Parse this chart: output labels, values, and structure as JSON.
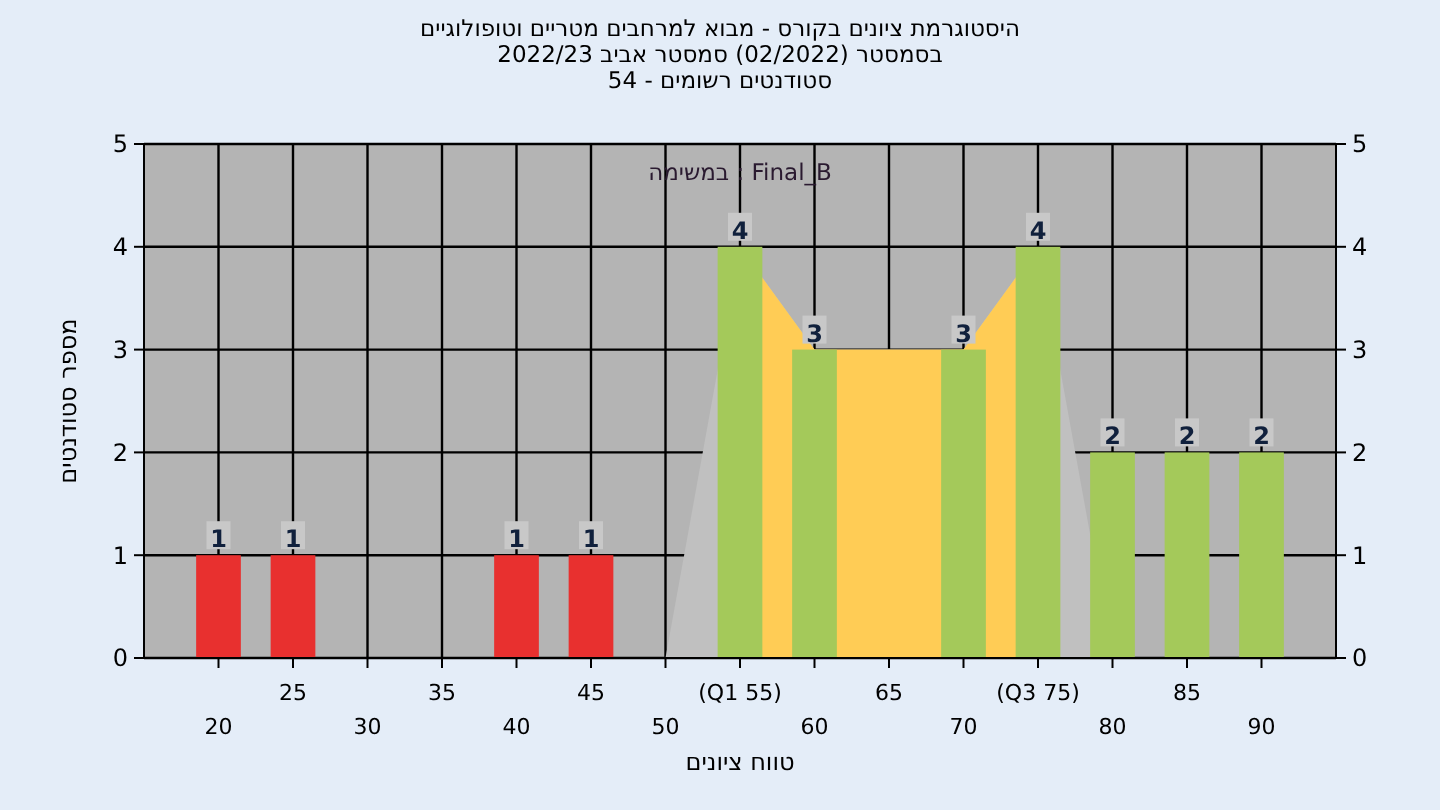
{
  "chart_data": {
    "type": "bar",
    "title": "היסטוגרמת ציונים בקורס - מבוא למרחבים מטריים וטופולוגיים",
    "subtitle": "בסמסטר  (02/2022)  סמסטר אביב 2022/23\nסטודנטים רשומים - 54",
    "xlabel": "טווח ציונים",
    "ylabel": "מספר סטודנטים",
    "annotations": [
      "במשימה : Final_B"
    ],
    "categories": [
      "20",
      "25",
      "30",
      "35",
      "40",
      "45",
      "50",
      "(Q1 55)",
      "60",
      "65",
      "70",
      "(Q3 75)",
      "80",
      "85",
      "90"
    ],
    "series": [
      {
        "type": "area",
        "color": "#c0c0c0",
        "values": [
          null,
          null,
          null,
          null,
          null,
          null,
          0,
          4,
          3,
          3,
          3,
          4,
          0,
          null,
          null
        ]
      },
      {
        "type": "area",
        "color": "#ffcc55",
        "values": [
          null,
          null,
          null,
          null,
          null,
          null,
          null,
          4,
          3,
          3,
          3,
          4,
          null,
          null,
          null
        ]
      },
      {
        "type": "bar",
        "colors": [
          "#e8302f",
          "#e8302f",
          "#e8302f",
          "#e8302f",
          "#e8302f",
          "#e8302f",
          "#e8302f",
          "#a4c95a",
          "#a4c95a",
          "#a4c95a",
          "#a4c95a",
          "#a4c95a",
          "#a4c95a",
          "#a4c95a",
          "#a4c95a"
        ],
        "values": [
          1,
          1,
          0,
          0,
          1,
          1,
          0,
          4,
          3,
          0,
          3,
          4,
          2,
          2,
          2
        ],
        "value_labels": [
          "1",
          "1",
          null,
          null,
          "1",
          "1",
          null,
          "4",
          "3",
          null,
          "3",
          "4",
          "2",
          "2",
          "2"
        ]
      }
    ],
    "ylim": [
      0,
      5
    ],
    "yticks": [
      0,
      1,
      2,
      3,
      4,
      5
    ],
    "y2lim": [
      0,
      5
    ],
    "y2ticks": [
      0,
      1,
      2,
      3,
      4,
      5
    ],
    "grid": true
  }
}
